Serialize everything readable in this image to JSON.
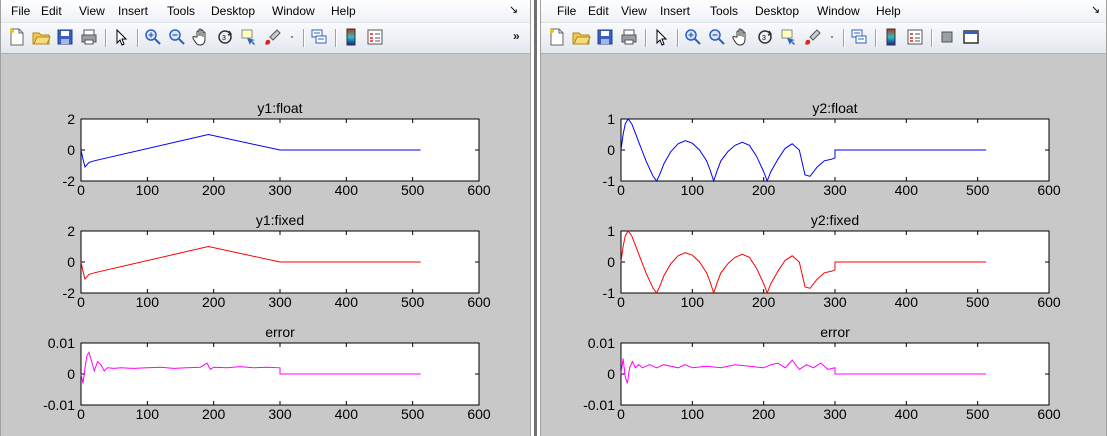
{
  "figures": [
    {
      "id": "left",
      "menu": [
        "File",
        "Edit",
        "View",
        "Insert",
        "Tools",
        "Desktop",
        "Window",
        "Help"
      ],
      "toolbar_overflow": "»",
      "toolbar_icons": [
        "new-file-icon",
        "open-folder-icon",
        "save-icon",
        "print-icon",
        "|",
        "pointer-icon",
        "|",
        "zoom-in-icon",
        "zoom-out-icon",
        "pan-hand-icon",
        "rotate-3d-icon",
        "data-cursor-icon",
        "brush-icon",
        "dropdown-arrow-icon",
        "|",
        "link-plot-icon",
        "|",
        "colorbar-icon",
        "legend-icon"
      ]
    },
    {
      "id": "right",
      "menu": [
        "File",
        "Edit",
        "View",
        "Insert",
        "Tools",
        "Desktop",
        "Window",
        "Help"
      ],
      "toolbar_overflow": "",
      "toolbar_icons": [
        "new-file-icon",
        "open-folder-icon",
        "save-icon",
        "print-icon",
        "|",
        "pointer-icon",
        "|",
        "zoom-in-icon",
        "zoom-out-icon",
        "pan-hand-icon",
        "rotate-3d-icon",
        "data-cursor-icon",
        "brush-icon",
        "dropdown-arrow-icon",
        "|",
        "link-plot-icon",
        "|",
        "colorbar-icon",
        "legend-icon",
        "|",
        "hide-tools-icon",
        "dock-icon"
      ]
    }
  ],
  "chart_data": [
    {
      "type": "line",
      "figure": "left",
      "title": "y1:float",
      "color": "#0000ff",
      "xlim": [
        0,
        600
      ],
      "ylim": [
        -2,
        2
      ],
      "xticks": [
        0,
        100,
        200,
        300,
        400,
        500,
        600
      ],
      "yticks": [
        2,
        0,
        -2
      ],
      "x": [
        0,
        3,
        6,
        9,
        12,
        20,
        192,
        300,
        300,
        512
      ],
      "y": [
        0,
        -0.6,
        -1.1,
        -0.95,
        -0.8,
        -0.7,
        1.0,
        0.0,
        0.0,
        0.0
      ]
    },
    {
      "type": "line",
      "figure": "left",
      "title": "y1:fixed",
      "color": "#ff0000",
      "xlim": [
        0,
        600
      ],
      "ylim": [
        -2,
        2
      ],
      "xticks": [
        0,
        100,
        200,
        300,
        400,
        500,
        600
      ],
      "yticks": [
        2,
        0,
        -2
      ],
      "x": [
        0,
        3,
        6,
        9,
        12,
        20,
        192,
        300,
        300,
        512
      ],
      "y": [
        0,
        -0.6,
        -1.1,
        -0.95,
        -0.8,
        -0.7,
        1.0,
        0.0,
        0.0,
        0.0
      ]
    },
    {
      "type": "line",
      "figure": "left",
      "title": "error",
      "color": "#ff00ff",
      "xlim": [
        0,
        600
      ],
      "ylim": [
        -0.01,
        0.01
      ],
      "xticks": [
        0,
        100,
        200,
        300,
        400,
        500,
        600
      ],
      "yticks": [
        0.01,
        0,
        -0.01
      ],
      "x": [
        0,
        3,
        6,
        9,
        12,
        16,
        20,
        25,
        30,
        35,
        40,
        50,
        60,
        80,
        100,
        120,
        140,
        160,
        180,
        190,
        195,
        200,
        220,
        240,
        260,
        280,
        300,
        300,
        512
      ],
      "y": [
        0,
        -0.003,
        0.002,
        0.006,
        0.007,
        0.004,
        0.001,
        0.004,
        0.003,
        0.001,
        0.002,
        0.0018,
        0.002,
        0.0018,
        0.002,
        0.0022,
        0.0018,
        0.002,
        0.0022,
        0.0035,
        0.0015,
        0.0022,
        0.002,
        0.0024,
        0.002,
        0.0022,
        0.002,
        0.0,
        0.0
      ]
    },
    {
      "type": "line",
      "figure": "right",
      "title": "y2:float",
      "color": "#0000ff",
      "xlim": [
        0,
        600
      ],
      "ylim": [
        -1,
        1
      ],
      "xticks": [
        0,
        100,
        200,
        300,
        400,
        500,
        600
      ],
      "yticks": [
        1,
        0,
        -1
      ],
      "x": [
        0,
        3,
        6,
        10,
        15,
        20,
        25,
        30,
        35,
        40,
        45,
        50,
        55,
        60,
        70,
        80,
        90,
        100,
        110,
        120,
        125,
        130,
        135,
        140,
        150,
        160,
        170,
        180,
        190,
        200,
        205,
        210,
        220,
        230,
        240,
        250,
        258,
        265,
        275,
        285,
        295,
        300,
        300,
        512
      ],
      "y": [
        0,
        0.5,
        0.85,
        1.0,
        0.85,
        0.55,
        0.25,
        -0.05,
        -0.35,
        -0.6,
        -0.85,
        -1.0,
        -0.75,
        -0.45,
        -0.05,
        0.2,
        0.3,
        0.22,
        0.0,
        -0.35,
        -0.65,
        -1.0,
        -0.65,
        -0.35,
        -0.05,
        0.15,
        0.25,
        0.15,
        -0.2,
        -0.7,
        -1.0,
        -0.7,
        -0.3,
        0.05,
        0.2,
        0.0,
        -0.8,
        -0.85,
        -0.55,
        -0.35,
        -0.3,
        -0.25,
        0.0,
        0.0
      ]
    },
    {
      "type": "line",
      "figure": "right",
      "title": "y2:fixed",
      "color": "#ff0000",
      "xlim": [
        0,
        600
      ],
      "ylim": [
        -1,
        1
      ],
      "xticks": [
        0,
        100,
        200,
        300,
        400,
        500,
        600
      ],
      "yticks": [
        1,
        0,
        -1
      ],
      "x": [
        0,
        3,
        6,
        10,
        15,
        20,
        25,
        30,
        35,
        40,
        45,
        50,
        55,
        60,
        70,
        80,
        90,
        100,
        110,
        120,
        125,
        130,
        135,
        140,
        150,
        160,
        170,
        180,
        190,
        200,
        205,
        210,
        220,
        230,
        240,
        250,
        258,
        265,
        275,
        285,
        295,
        300,
        300,
        512
      ],
      "y": [
        0,
        0.5,
        0.85,
        1.0,
        0.85,
        0.55,
        0.25,
        -0.05,
        -0.35,
        -0.6,
        -0.85,
        -1.0,
        -0.75,
        -0.45,
        -0.05,
        0.2,
        0.3,
        0.22,
        0.0,
        -0.35,
        -0.65,
        -1.0,
        -0.65,
        -0.35,
        -0.05,
        0.15,
        0.25,
        0.15,
        -0.2,
        -0.7,
        -1.0,
        -0.7,
        -0.3,
        0.05,
        0.2,
        0.0,
        -0.8,
        -0.85,
        -0.55,
        -0.35,
        -0.3,
        -0.25,
        0.0,
        0.0
      ]
    },
    {
      "type": "line",
      "figure": "right",
      "title": "error",
      "color": "#ff00ff",
      "xlim": [
        0,
        600
      ],
      "ylim": [
        -0.01,
        0.01
      ],
      "xticks": [
        0,
        100,
        200,
        300,
        400,
        500,
        600
      ],
      "yticks": [
        0.01,
        0,
        -0.01
      ],
      "x": [
        0,
        3,
        6,
        9,
        12,
        16,
        20,
        25,
        30,
        40,
        50,
        60,
        70,
        80,
        90,
        100,
        120,
        140,
        160,
        180,
        200,
        210,
        220,
        230,
        240,
        250,
        260,
        270,
        280,
        290,
        300,
        300,
        512
      ],
      "y": [
        0,
        0.005,
        -0.001,
        -0.003,
        0.002,
        0.004,
        0.002,
        0.003,
        0.002,
        0.003,
        0.002,
        0.003,
        0.0025,
        0.002,
        0.003,
        0.002,
        0.0025,
        0.002,
        0.003,
        0.0025,
        0.002,
        0.003,
        0.0035,
        0.002,
        0.0045,
        0.0015,
        0.003,
        0.002,
        0.0035,
        0.0015,
        0.002,
        0.0,
        0.0
      ]
    }
  ]
}
